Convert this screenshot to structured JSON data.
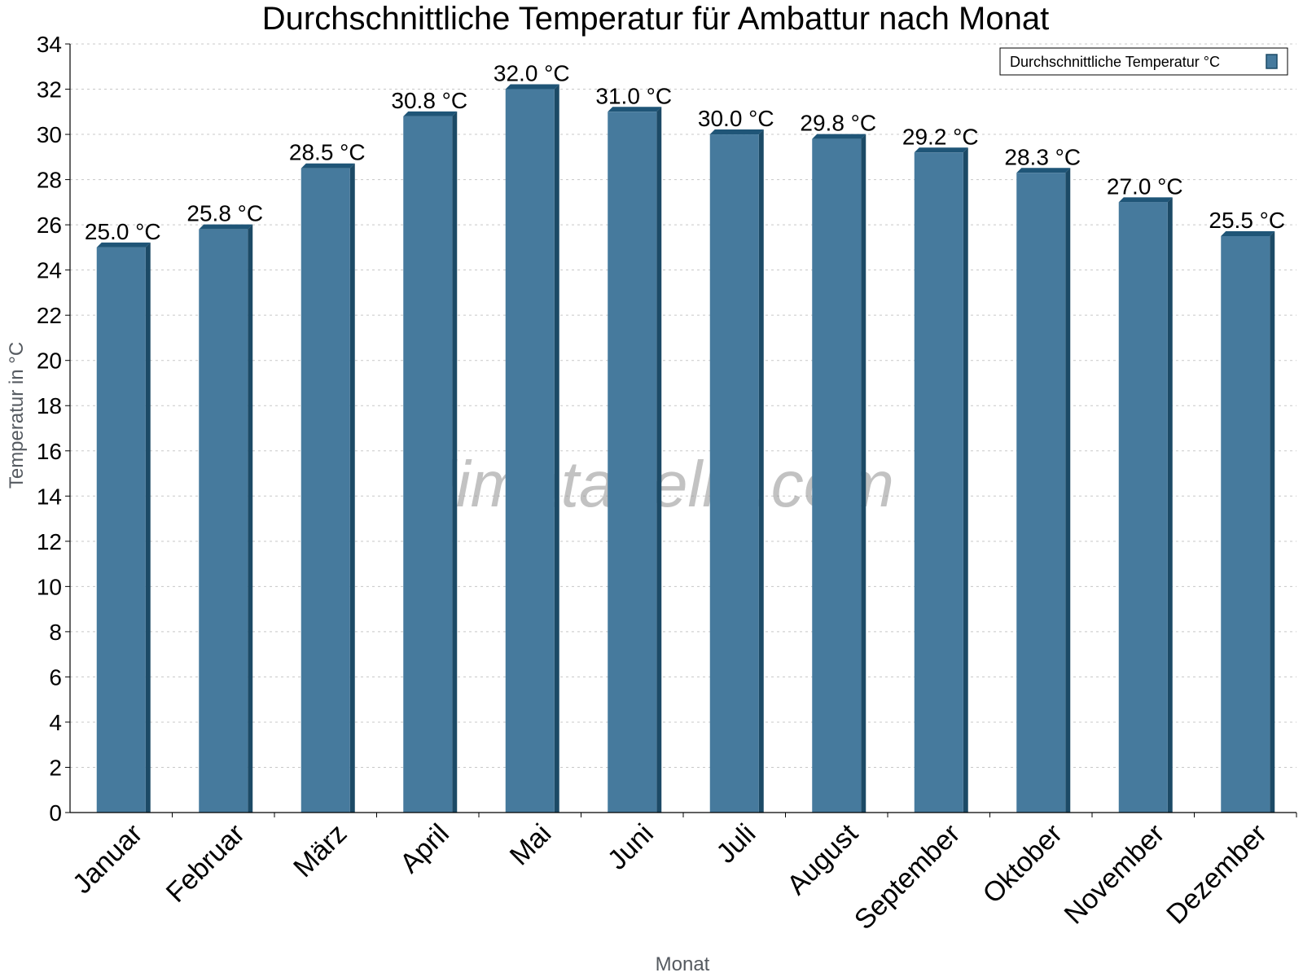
{
  "watermark": "klimatabelle.com",
  "chart_data": {
    "type": "bar",
    "title": "Durchschnittliche Temperatur für Ambattur nach Monat",
    "xlabel": "Monat",
    "ylabel": "Temperatur in °C",
    "ylim": [
      0,
      34
    ],
    "ytick_step": 2,
    "grid": true,
    "legend_position": "top-right",
    "value_suffix": " °C",
    "categories": [
      "Januar",
      "Februar",
      "März",
      "April",
      "Mai",
      "Juni",
      "Juli",
      "August",
      "September",
      "Oktober",
      "November",
      "Dezember"
    ],
    "series": [
      {
        "name": "Durchschnittliche Temperatur °C",
        "color": "#467a9d",
        "values": [
          25.0,
          25.8,
          28.5,
          30.8,
          32.0,
          31.0,
          30.0,
          29.8,
          29.2,
          28.3,
          27.0,
          25.5
        ]
      }
    ]
  }
}
